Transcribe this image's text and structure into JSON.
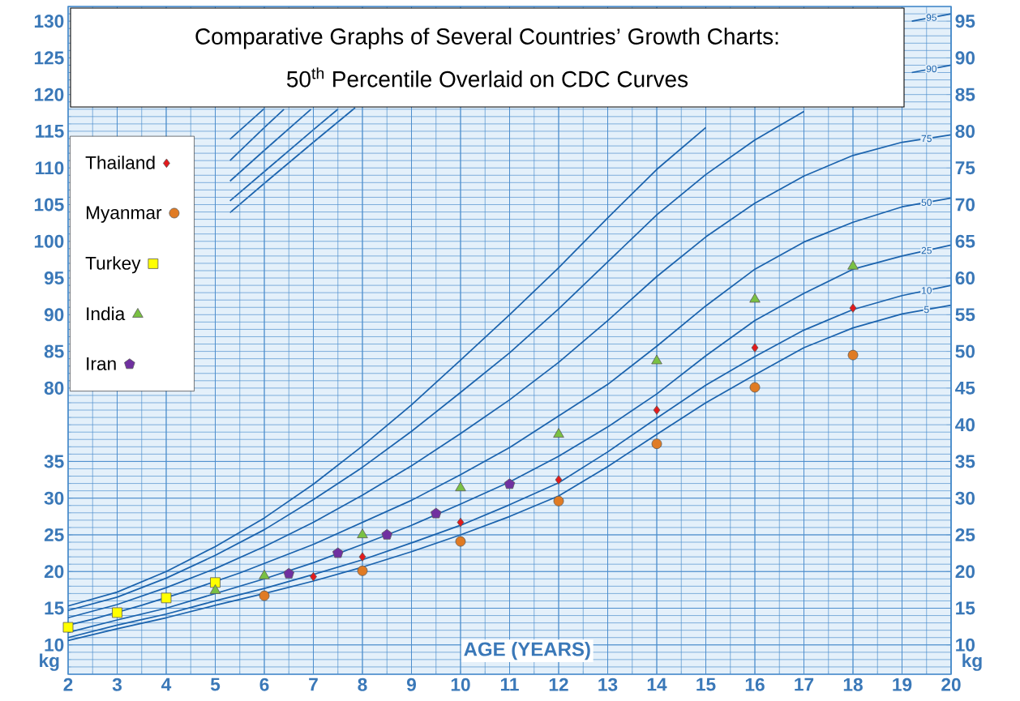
{
  "chart_data": {
    "type": "scatter",
    "title": "Comparative Graphs of Several Countries’ Growth Charts:",
    "subtitle": "50$^{th}$ Percentile Overlaid on CDC Curves",
    "xlabel": "AGE (YEARS)",
    "ylabel": "kg",
    "y2label": "kg",
    "x": [
      2,
      3,
      4,
      5,
      6,
      7,
      8,
      9,
      10,
      11,
      12,
      13,
      14,
      15,
      16,
      17,
      18,
      19,
      20
    ],
    "xlim": [
      2,
      20
    ],
    "xticks": [
      2,
      3,
      4,
      5,
      6,
      7,
      8,
      9,
      10,
      11,
      12,
      13,
      14,
      15,
      16,
      17,
      18,
      19,
      20
    ],
    "ylim": [
      6,
      97
    ],
    "yticks": [
      10,
      15,
      20,
      25,
      30,
      35
    ],
    "y2lim": [
      6,
      97
    ],
    "y2ticks": [
      10,
      15,
      20,
      25,
      30,
      35,
      40,
      45,
      50,
      55,
      60,
      65,
      70,
      75,
      80,
      85,
      90,
      95
    ],
    "y3lim": [
      41,
      132
    ],
    "y3ticks": [
      80,
      85,
      90,
      95,
      100,
      105,
      110,
      115,
      120,
      125,
      130
    ],
    "grid": true,
    "legend": "top left",
    "series": [
      {
        "name": "Thailand",
        "marker": "diamond",
        "color": "#e31a1c",
        "x": [
          7,
          8,
          10,
          12,
          14,
          16,
          18
        ],
        "values": [
          19.3,
          22.0,
          26.7,
          32.5,
          42.0,
          50.5,
          55.9
        ]
      },
      {
        "name": "Myanmar",
        "marker": "circle",
        "color": "#e07b24",
        "x": [
          6,
          8,
          10,
          12,
          14,
          16,
          18
        ],
        "values": [
          16.7,
          20.1,
          24.1,
          29.6,
          37.4,
          45.1,
          49.5
        ]
      },
      {
        "name": "Turkey",
        "marker": "square",
        "color": "#ffff00",
        "x": [
          2,
          3,
          4,
          5
        ],
        "values": [
          12.4,
          14.4,
          16.4,
          18.5
        ]
      },
      {
        "name": "India",
        "marker": "triangle",
        "color": "#7ac143",
        "x": [
          5,
          6,
          8,
          10,
          12,
          14,
          16,
          18
        ],
        "values": [
          17.4,
          19.4,
          25.0,
          31.4,
          38.7,
          48.7,
          57.1,
          61.6
        ]
      },
      {
        "name": "Iran",
        "color": "#7030a0",
        "x": [
          6.5,
          7.5,
          8.5,
          9.5,
          11
        ],
        "values": [
          19.7,
          22.5,
          25.0,
          27.9,
          31.9
        ]
      },
      {
        "name": "5",
        "type": "line",
        "color": "#1b63ad",
        "values": [
          10.6,
          12.2,
          13.7,
          15.4,
          17.0,
          18.7,
          20.6,
          22.7,
          25.0,
          27.5,
          30.3,
          34.3,
          38.7,
          43.0,
          46.8,
          50.5,
          53.2,
          55.1,
          56.3
        ]
      },
      {
        "name": "10",
        "type": "line",
        "color": "#1b63ad",
        "values": [
          11.0,
          12.7,
          14.2,
          16.0,
          17.7,
          19.6,
          21.6,
          23.9,
          26.3,
          29.1,
          32.1,
          36.3,
          40.9,
          45.4,
          49.3,
          52.9,
          55.7,
          57.6,
          59.0
        ]
      },
      {
        "name": "25",
        "type": "line",
        "color": "#1b63ad",
        "values": [
          11.7,
          13.4,
          15.0,
          17.0,
          19.0,
          21.2,
          23.7,
          26.3,
          29.2,
          32.2,
          35.7,
          39.7,
          44.2,
          49.4,
          54.2,
          57.9,
          61.2,
          63.0,
          64.5
        ]
      },
      {
        "name": "50",
        "type": "line",
        "color": "#1b63ad",
        "x": [
          2,
          2.5,
          3.5,
          4.5,
          5.5,
          6,
          7,
          8,
          9,
          10,
          11,
          12,
          13,
          14,
          15,
          16,
          17,
          18,
          19,
          20
        ],
        "values": [
          12.7,
          13.5,
          15.4,
          17.5,
          19.8,
          21.1,
          23.7,
          26.7,
          29.7,
          33.2,
          36.9,
          41.2,
          45.5,
          50.7,
          56.2,
          61.2,
          64.9,
          67.6,
          69.7,
          70.9
        ]
      },
      {
        "name": "75",
        "type": "line",
        "color": "#1b63ad",
        "values": [
          13.7,
          15.5,
          17.8,
          20.4,
          23.4,
          26.7,
          30.4,
          34.4,
          38.8,
          43.4,
          48.5,
          54.2,
          60.2,
          65.6,
          70.2,
          73.9,
          76.7,
          78.5,
          79.5
        ]
      },
      {
        "name": "90",
        "type": "line",
        "color": "#1b63ad",
        "x": [
          2,
          3,
          4,
          5,
          6,
          7,
          8,
          9,
          10,
          11,
          12,
          13,
          14,
          15,
          16,
          17,
          18,
          19,
          19.2,
          20
        ],
        "values": [
          14.7,
          16.5,
          19.1,
          22.2,
          25.7,
          29.8,
          34.2,
          39.1,
          44.4,
          49.8,
          55.8,
          62.2,
          68.6,
          74.1,
          78.8,
          82.7,
          null,
          null,
          88.0,
          89.0
        ]
      },
      {
        "name": "95",
        "type": "line",
        "color": "#1b63ad",
        "x": [
          2,
          3,
          4,
          5,
          6,
          7,
          8,
          9,
          10,
          11,
          12,
          13,
          14,
          15,
          16,
          17,
          18,
          19,
          19.2,
          20
        ],
        "values": [
          15.3,
          17.2,
          20.0,
          23.4,
          27.3,
          31.9,
          37.1,
          42.7,
          48.8,
          55.0,
          61.4,
          68.2,
          74.8,
          80.5,
          null,
          null,
          null,
          null,
          95.0,
          96.0
        ]
      },
      {
        "type": "line",
        "axis": "y3",
        "color": "#1b63ad",
        "x": [
          5.3,
          6,
          7,
          7.85
        ],
        "values": [
          103.9,
          107.9,
          113.5,
          118.2
        ]
      },
      {
        "type": "line",
        "axis": "y3",
        "color": "#1b63ad",
        "x": [
          5.3,
          6,
          7,
          7.5
        ],
        "values": [
          105.5,
          109.5,
          115.2,
          118.0
        ]
      },
      {
        "type": "line",
        "axis": "y3",
        "color": "#1b63ad",
        "x": [
          5.3,
          6,
          6.95
        ],
        "values": [
          108.2,
          112.4,
          118.0
        ]
      },
      {
        "type": "line",
        "axis": "y3",
        "color": "#1b63ad",
        "x": [
          5.3,
          6,
          6.4
        ],
        "values": [
          111.0,
          115.5,
          118.0
        ]
      },
      {
        "type": "line",
        "axis": "y3",
        "color": "#1b63ad",
        "x": [
          5.3,
          6
        ],
        "values": [
          113.9,
          118.1
        ]
      }
    ]
  }
}
